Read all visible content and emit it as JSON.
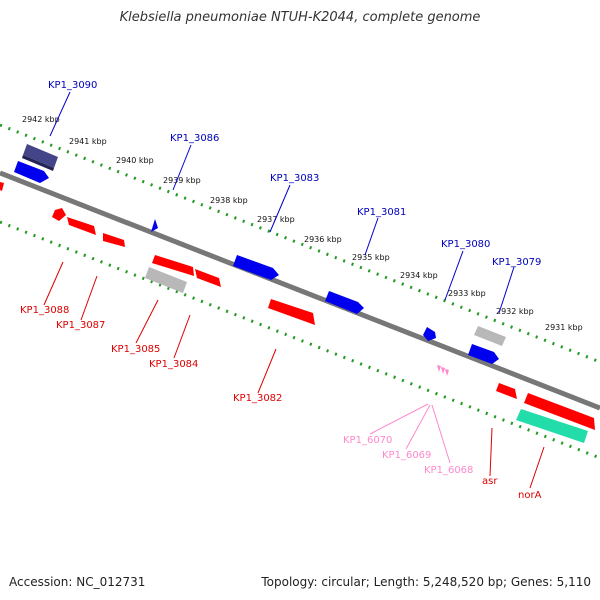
{
  "title": "Klebsiella pneumoniae NTUH-K2044, complete genome",
  "footer": {
    "accession": "Accession: NC_012731",
    "summary": "Topology: circular; Length: 5,248,520 bp; Genes: 5,110"
  },
  "colors": {
    "forward": "#0000ee",
    "reverse": "#ff0000",
    "rna": "#ff88cc",
    "pseudo": "#b0b0b0",
    "dark": "#444488",
    "cyan": "#22ddaa",
    "backbone": "#777777",
    "ticks": "#229922"
  },
  "scale_labels": [
    "2942 kbp",
    "2941 kbp",
    "2940 kbp",
    "2939 kbp",
    "2938 kbp",
    "2937 kbp",
    "2936 kbp",
    "2935 kbp",
    "2934 kbp",
    "2933 kbp",
    "2932 kbp",
    "2931 kbp"
  ],
  "gene_labels": {
    "top": [
      "KP1_3090",
      "KP1_3086",
      "KP1_3083",
      "KP1_3081",
      "KP1_3080",
      "KP1_3079"
    ],
    "bottom": [
      "KP1_3088",
      "KP1_3087",
      "KP1_3085",
      "KP1_3084",
      "KP1_3082"
    ],
    "rna": [
      "KP1_6070",
      "KP1_6069",
      "KP1_6068"
    ],
    "named": [
      "asr",
      "norA"
    ]
  }
}
